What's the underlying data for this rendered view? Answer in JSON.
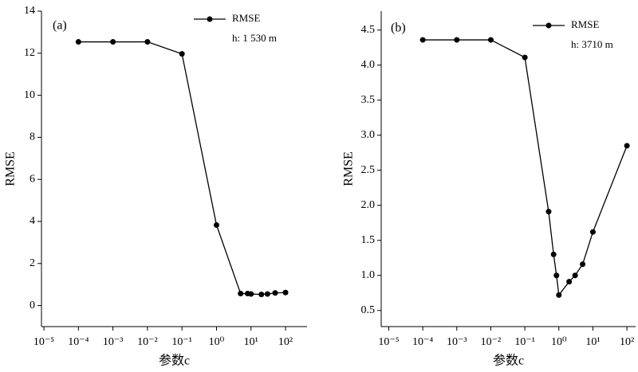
{
  "chart_data": [
    {
      "type": "line",
      "title": "(a)",
      "xlabel": "参数c",
      "ylabel": "RMSE",
      "log_x": true,
      "x": [
        0.0001,
        0.001,
        0.01,
        0.1,
        1,
        5,
        8,
        10,
        20,
        30,
        50,
        100
      ],
      "series": [
        {
          "name": "RMSE",
          "color": "#000000",
          "values": [
            12.54,
            12.54,
            12.54,
            11.97,
            3.83,
            0.57,
            0.57,
            0.55,
            0.53,
            0.55,
            0.6,
            0.62
          ]
        }
      ],
      "annotation": "h: 1 530 m",
      "xlim": [
        8.5e-06,
        420
      ],
      "ylim": [
        -1,
        14
      ],
      "xticks": [
        {
          "value": 1e-05,
          "label": "10⁻⁵"
        },
        {
          "value": 0.0001,
          "label": "10⁻⁴"
        },
        {
          "value": 0.001,
          "label": "10⁻³"
        },
        {
          "value": 0.01,
          "label": "10⁻²"
        },
        {
          "value": 0.1,
          "label": "10⁻¹"
        },
        {
          "value": 1,
          "label": "10⁰"
        },
        {
          "value": 10,
          "label": "10¹"
        },
        {
          "value": 100,
          "label": "10²"
        }
      ],
      "yticks": [
        0,
        2,
        4,
        6,
        8,
        10,
        12,
        14
      ]
    },
    {
      "type": "line",
      "title": "(b)",
      "xlabel": "参数c",
      "ylabel": "RMSE",
      "log_x": true,
      "x": [
        0.0001,
        0.001,
        0.01,
        0.1,
        0.5,
        0.7,
        0.85,
        1,
        2,
        3,
        5,
        10,
        100
      ],
      "series": [
        {
          "name": "RMSE",
          "color": "#000000",
          "values": [
            4.36,
            4.36,
            4.36,
            4.11,
            1.91,
            1.3,
            1.0,
            0.72,
            0.91,
            1.0,
            1.16,
            1.62,
            2.85
          ]
        }
      ],
      "annotation": "h: 3710 m",
      "xlim": [
        6e-06,
        180
      ],
      "ylim": [
        0.27,
        4.77
      ],
      "xticks": [
        {
          "value": 1e-05,
          "label": "10⁻⁵"
        },
        {
          "value": 0.0001,
          "label": "10⁻⁴"
        },
        {
          "value": 0.001,
          "label": "10⁻³"
        },
        {
          "value": 0.01,
          "label": "10⁻²"
        },
        {
          "value": 0.1,
          "label": "10⁻¹"
        },
        {
          "value": 1,
          "label": "10⁰"
        },
        {
          "value": 10,
          "label": "10¹"
        },
        {
          "value": 100,
          "label": "10²"
        }
      ],
      "yticks": [
        0.5,
        {
          "value": 1,
          "label": "1.0"
        },
        1.5,
        {
          "value": 2,
          "label": "2.0"
        },
        2.5,
        {
          "value": 3,
          "label": "3.0"
        },
        3.5,
        {
          "value": 4,
          "label": "4.0"
        },
        4.5
      ]
    }
  ]
}
